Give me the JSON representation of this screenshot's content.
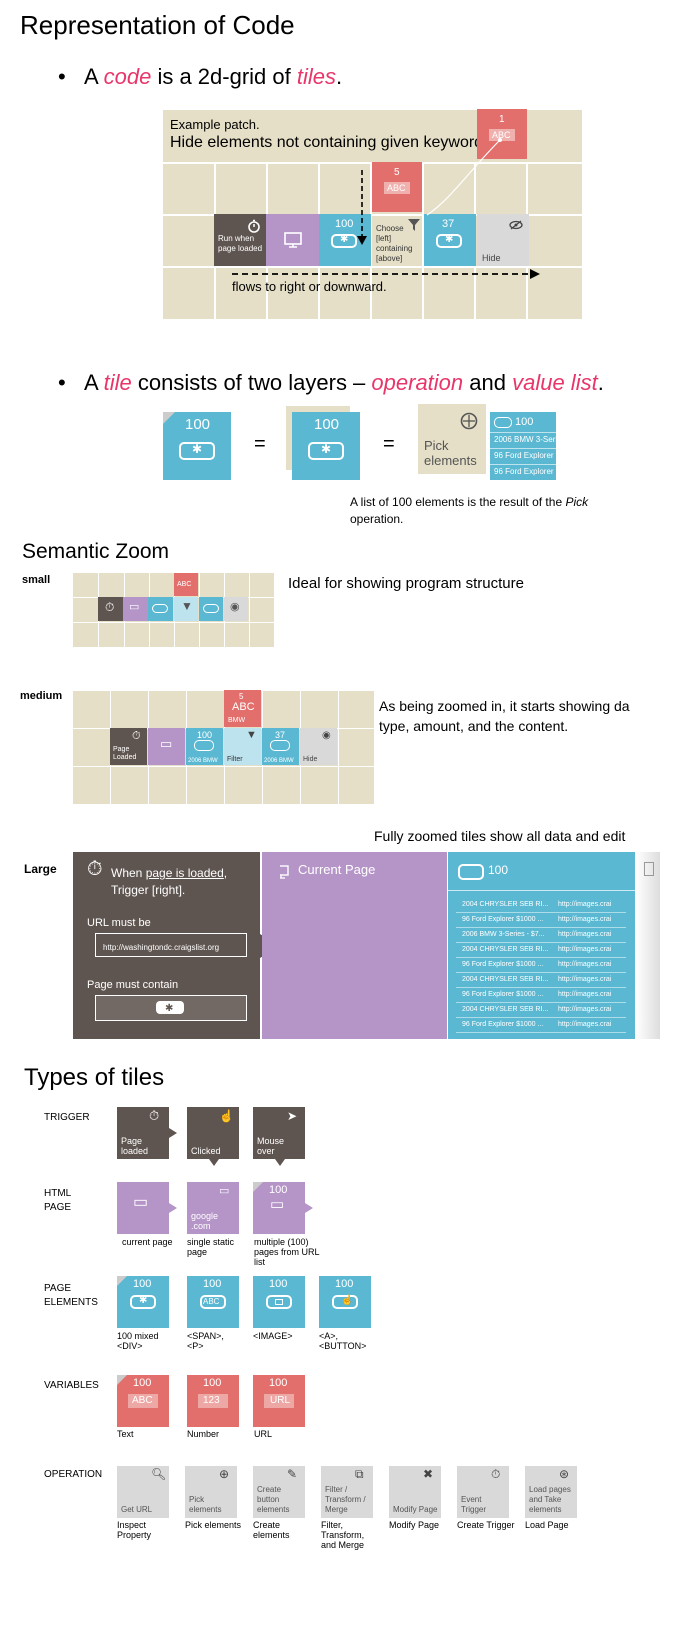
{
  "title": "Representation of Code",
  "bullet1": {
    "pre": "A ",
    "code": "code",
    "mid": " is a 2d-grid of ",
    "tiles": "tiles",
    "post": "."
  },
  "patch": {
    "label": "Example patch.",
    "desc": "Hide elements not containing given keywords.",
    "flow": "flows to right or downward.",
    "run": "Run when page loaded",
    "count100": "100",
    "choose": "Choose [left] containing [above]",
    "count37": "37",
    "hide": "Hide",
    "count5": "5",
    "count1": "1",
    "abc": "ABC"
  },
  "bullet2": {
    "pre": "A ",
    "tile": "tile",
    "mid": " consists of two layers – ",
    "operation": "operation",
    "and": " and ",
    "valuelist": "value list",
    "post": "."
  },
  "layers": {
    "count": "100",
    "eq": "=",
    "pick": "Pick elements",
    "list": [
      "2006 BMW 3-Seri",
      "96 Ford Explorer",
      "96 Ford Explorer"
    ],
    "note1": "A list of 100 elements is the result of the ",
    "note_pick": "Pick",
    "note2": "operation."
  },
  "zoom": {
    "title": "Semantic Zoom",
    "small": "small",
    "small_desc": "Ideal for showing program structure",
    "medium": "medium",
    "medium_desc1": "As being zoomed in, it starts showing da",
    "medium_desc2": "type, amount, and the content.",
    "m_page": "Page Loaded",
    "m_bmw": "2006 BMW",
    "m_filter": "Filter",
    "m_hide": "Hide",
    "m_abc": "ABC",
    "m_bmw2": "BMW",
    "m_5": "5",
    "m_100": "100",
    "m_37": "37",
    "large_desc": "Fully zoomed tiles show all data and edit",
    "large": "Large",
    "l_when1": "When ",
    "l_when_u": "page is loaded",
    "l_when2": ",",
    "l_trigger": "Trigger [right].",
    "l_url_label": "URL must be",
    "l_url": "http://washingtondc.craigslist.org",
    "l_contain": "Page must contain",
    "l_current": "Current Page",
    "l_count": "100",
    "rows": [
      [
        "2004 CHRYSLER SEB RI...",
        "http://images.crai"
      ],
      [
        "96 Ford Explorer $1000 ...",
        "http://images.crai"
      ],
      [
        "2006 BMW 3-Series - $7...",
        "http://images.crai"
      ],
      [
        "2004 CHRYSLER SEB RI...",
        "http://images.crai"
      ],
      [
        "96 Ford Explorer $1000 ...",
        "http://images.crai"
      ],
      [
        "2004 CHRYSLER SEB RI...",
        "http://images.crai"
      ],
      [
        "96 Ford Explorer $1000 ...",
        "http://images.crai"
      ],
      [
        "2004 CHRYSLER SEB RI...",
        "http://images.crai"
      ],
      [
        "96 Ford Explorer $1000 ...",
        "http://images.crai"
      ]
    ]
  },
  "types": {
    "title": "Types of tiles",
    "trigger": {
      "label": "TRIGGER",
      "tiles": [
        "Page loaded",
        "Clicked",
        "Mouse over"
      ]
    },
    "html": {
      "label1": "HTML",
      "label2": "PAGE",
      "google": "google .com",
      "count": "100",
      "caps": [
        "current page",
        "single static page",
        "multiple (100) pages from URL list"
      ]
    },
    "elements": {
      "label1": "PAGE",
      "label2": "ELEMENTS",
      "count": "100",
      "abc": "ABC",
      "caps": [
        "100 mixed <DIV>",
        "<SPAN>, <P>",
        "<IMAGE>",
        "<A>, <BUTTON>"
      ]
    },
    "variables": {
      "label": "VARIABLES",
      "count": "100",
      "vals": [
        "ABC",
        "123",
        "URL"
      ],
      "caps": [
        "Text",
        "Number",
        "URL"
      ]
    },
    "operation": {
      "label": "OPERATION",
      "tiles": [
        "Get URL",
        "Pick elements",
        "Create button elements",
        "Filter / Transform / Merge",
        "Modify Page",
        "Event Trigger",
        "Load pages and Take elements"
      ],
      "caps": [
        "Inspect Property",
        "Pick elements",
        "Create elements",
        "Filter, Transform, and Merge",
        "Modify Page",
        "Create Trigger",
        "Load Page"
      ]
    }
  },
  "colors": {
    "brown": "#5f5550",
    "purple": "#b594c8",
    "blue": "#5ab8d2",
    "red": "#e26f6c",
    "grey": "#d9d9d9",
    "accent": "#e8366a",
    "grid": "#e5dfc8"
  }
}
